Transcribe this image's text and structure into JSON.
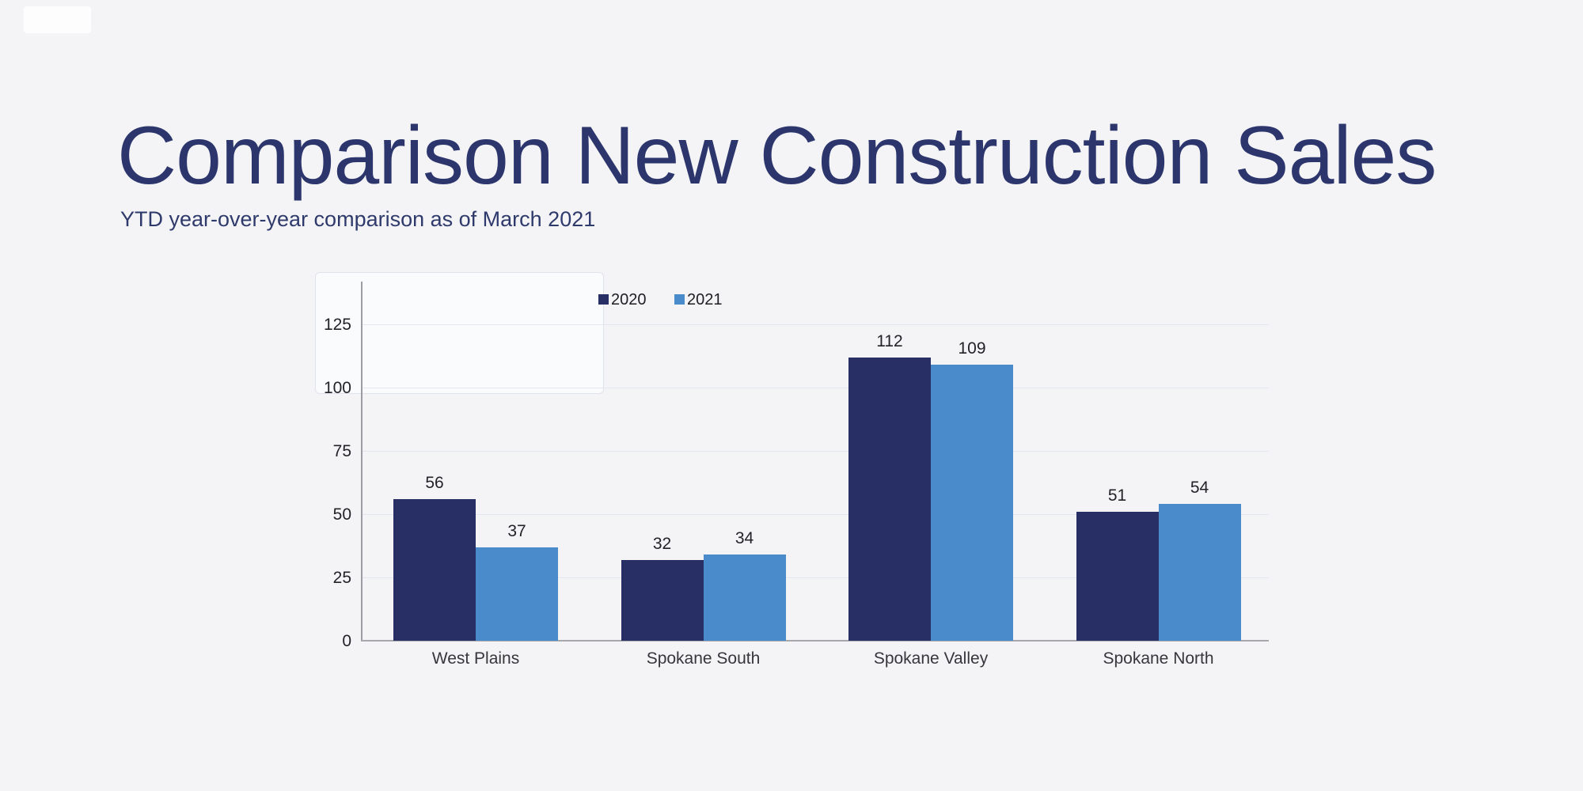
{
  "page": {
    "title": "Comparison New Construction Sales",
    "subtitle": "YTD year-over-year comparison as of March 2021",
    "background_color": "#f4f4f6",
    "title_color": "#2c366d"
  },
  "chart_data": {
    "type": "bar",
    "categories": [
      "West Plains",
      "Spokane South",
      "Spokane Valley",
      "Spokane North"
    ],
    "series": [
      {
        "name": "2020",
        "color": "#282f64",
        "values": [
          56,
          32,
          112,
          51
        ]
      },
      {
        "name": "2021",
        "color": "#4a8ccb",
        "values": [
          37,
          34,
          109,
          54
        ]
      }
    ],
    "title": "",
    "xlabel": "",
    "ylabel": "",
    "ylim": [
      0,
      137.5
    ],
    "yticks": [
      0,
      25,
      50,
      75,
      100,
      125
    ],
    "grid": true,
    "legend_position": "top-center-inside",
    "value_labels": true,
    "axis_color": "#9c9ca2",
    "gridline_color": "#e2e6f1",
    "label_color": "#232327"
  }
}
